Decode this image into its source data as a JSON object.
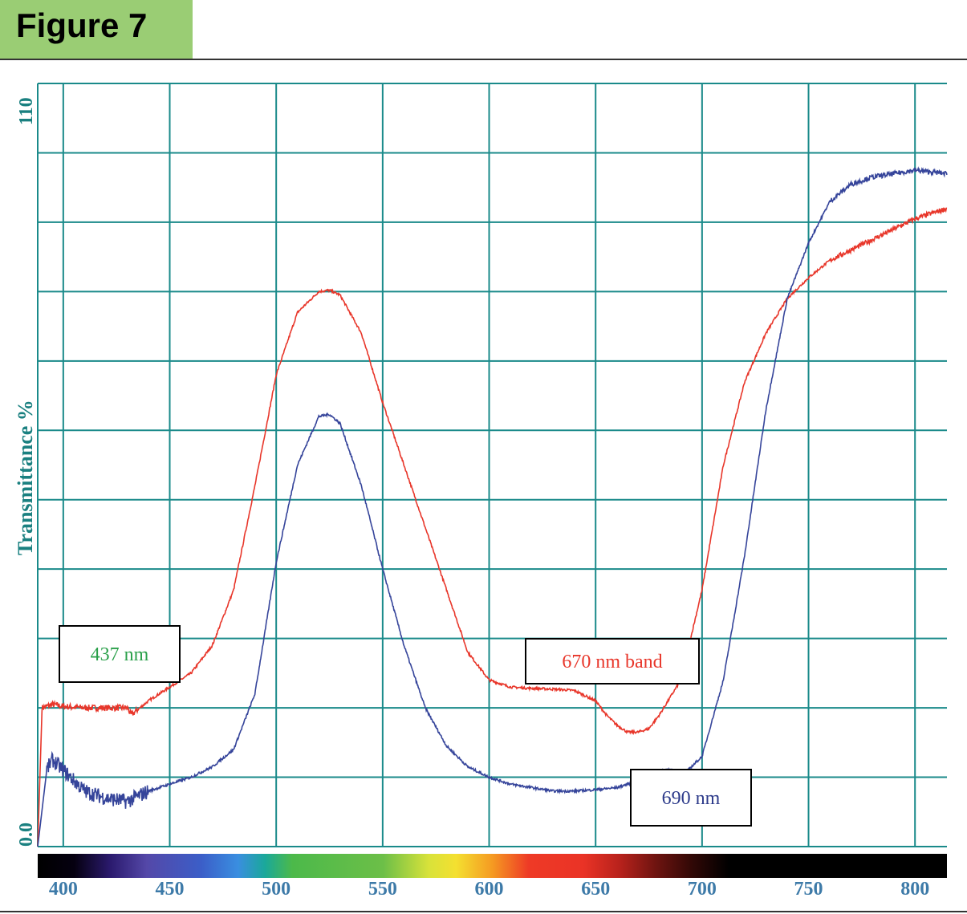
{
  "figure_label": "Figure 7",
  "chart_data": {
    "type": "line",
    "title": "",
    "xlabel": "",
    "ylabel": "Transmittance %",
    "xlim": [
      388,
      815
    ],
    "ylim": [
      0,
      110
    ],
    "y_tick_labels": [
      "0.0",
      "110"
    ],
    "x_ticks": [
      400,
      450,
      500,
      550,
      600,
      650,
      700,
      750,
      800
    ],
    "grid": true,
    "spectrum_bar": true,
    "colors": {
      "grid": "#1a8a8a",
      "axis_text": "#1a8080",
      "tick_text": "#3d7aa8",
      "red_series": "#e8362a",
      "blue_series": "#35449a",
      "ann_green": "#2aa04a",
      "ann_red": "#e8362a",
      "ann_blue": "#2c3a8a"
    },
    "series": [
      {
        "color": "red",
        "x": [
          388,
          390,
          395,
          400,
          410,
          420,
          430,
          432,
          440,
          450,
          460,
          470,
          480,
          490,
          500,
          510,
          520,
          525,
          530,
          540,
          550,
          560,
          570,
          580,
          590,
          600,
          610,
          620,
          630,
          640,
          650,
          655,
          660,
          665,
          670,
          675,
          680,
          690,
          700,
          710,
          720,
          730,
          740,
          750,
          760,
          770,
          780,
          790,
          800,
          815
        ],
        "y": [
          0,
          20,
          20.5,
          20.2,
          20,
          20,
          20,
          19,
          21,
          23,
          25,
          29,
          37,
          52,
          68,
          77,
          80,
          80.2,
          79.5,
          74,
          64,
          55,
          46,
          37,
          28,
          24,
          23,
          22.8,
          22.7,
          22.5,
          21,
          19,
          17.5,
          16.5,
          16.5,
          17,
          19,
          24,
          37,
          55,
          67,
          74,
          79,
          82,
          84.5,
          86,
          87.5,
          89,
          90.5,
          92
        ]
      },
      {
        "color": "blue",
        "x": [
          388,
          392,
          395,
          400,
          410,
          420,
          430,
          440,
          450,
          460,
          470,
          480,
          490,
          500,
          510,
          520,
          525,
          530,
          540,
          550,
          560,
          570,
          580,
          590,
          600,
          610,
          620,
          630,
          640,
          650,
          660,
          670,
          680,
          685,
          690,
          700,
          710,
          720,
          730,
          740,
          750,
          760,
          770,
          780,
          790,
          800,
          815
        ],
        "y": [
          0,
          11,
          12.5,
          11,
          8,
          7,
          6.5,
          8,
          9,
          10,
          11.5,
          14,
          22,
          41,
          55,
          62,
          62.3,
          61,
          52,
          40,
          29,
          20,
          14.5,
          11.5,
          10,
          9,
          8.5,
          8,
          8,
          8.2,
          8.5,
          9.5,
          11,
          11,
          10,
          13,
          24,
          42,
          63,
          79,
          87,
          93,
          95.5,
          96.5,
          97,
          97.5,
          97
        ]
      }
    ],
    "annotations": [
      {
        "text": "437 nm"
      },
      {
        "text": "670 nm band"
      },
      {
        "text": "690 nm"
      }
    ]
  }
}
